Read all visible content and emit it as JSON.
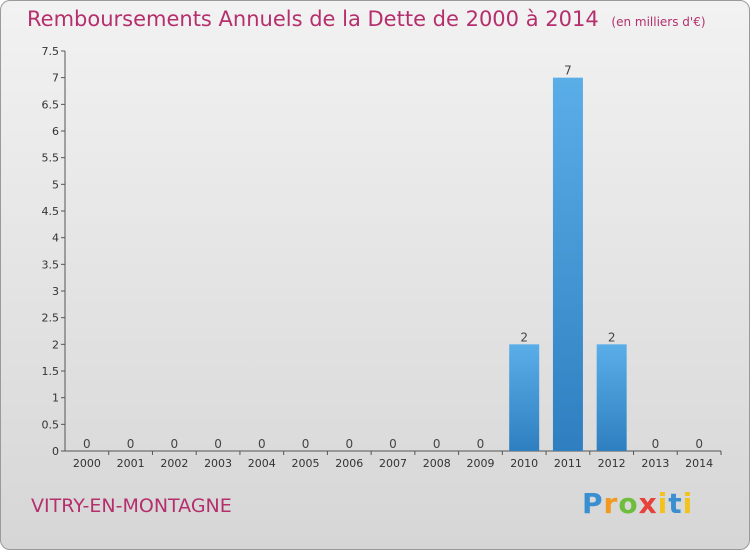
{
  "header": {
    "title": "Remboursements Annuels de la Dette de 2000 à 2014",
    "subtitle": "(en milliers d'€)"
  },
  "footer": {
    "commune": "VITRY-EN-MONTAGNE",
    "logo": "Proxiti"
  },
  "colors": {
    "title": "#b52f6d",
    "bar_light": "#5aaee8",
    "bar_dark": "#2f7fc0"
  },
  "chart_data": {
    "type": "bar",
    "title": "Remboursements Annuels de la Dette de 2000 à 2014",
    "ylabel": "",
    "xlabel": "",
    "ylim": [
      0,
      7.5
    ],
    "grid": false,
    "yticks": [
      {
        "value": 0,
        "label": "0"
      },
      {
        "value": 0.5,
        "label": "0.5"
      },
      {
        "value": 1,
        "label": "1"
      },
      {
        "value": 1.5,
        "label": "1.5"
      },
      {
        "value": 2,
        "label": "2"
      },
      {
        "value": 2.5,
        "label": "2.5"
      },
      {
        "value": 3,
        "label": "3"
      },
      {
        "value": 3.5,
        "label": "3.5"
      },
      {
        "value": 4,
        "label": "4"
      },
      {
        "value": 4.5,
        "label": "4.5"
      },
      {
        "value": 5,
        "label": "5"
      },
      {
        "value": 5.5,
        "label": "5.5"
      },
      {
        "value": 6,
        "label": "6"
      },
      {
        "value": 6.5,
        "label": "6.5"
      },
      {
        "value": 7,
        "label": "7"
      },
      {
        "value": 7.5,
        "label": "7.5"
      }
    ],
    "categories": [
      "2000",
      "2001",
      "2002",
      "2003",
      "2004",
      "2005",
      "2006",
      "2007",
      "2008",
      "2009",
      "2010",
      "2011",
      "2012",
      "2013",
      "2014"
    ],
    "values": [
      0,
      0,
      0,
      0,
      0,
      0,
      0,
      0,
      0,
      0,
      2,
      7,
      2,
      0,
      0
    ],
    "data_labels": [
      "0",
      "0",
      "0",
      "0",
      "0",
      "0",
      "0",
      "0",
      "0",
      "0",
      "2",
      "7",
      "2",
      "0",
      "0"
    ]
  }
}
